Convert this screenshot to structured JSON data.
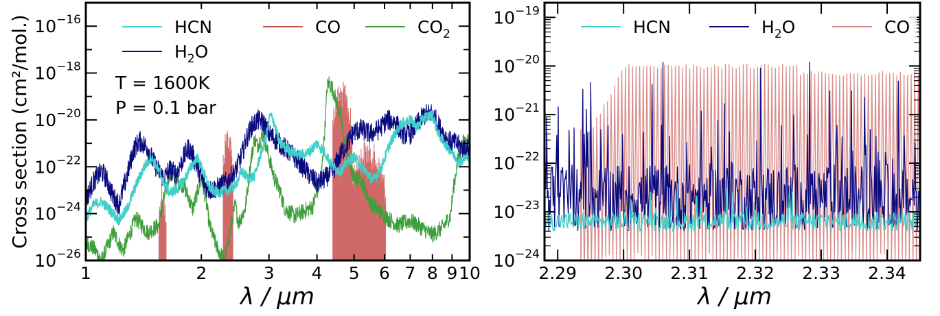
{
  "chart_data": [
    {
      "type": "line",
      "ylabel": "Cross section (cm²/mol.)",
      "xlabel": "λ / μm",
      "xscale": "log",
      "yscale": "log",
      "xlim": [
        1,
        10
      ],
      "ylim": [
        1e-26,
        1e-15
      ],
      "x_ticks": [
        "1",
        "2",
        "3",
        "4",
        "5",
        "6",
        "7",
        "8",
        "9",
        "10"
      ],
      "y_ticks": [
        {
          "base": "10",
          "exp": "−26",
          "value": 1e-26
        },
        {
          "base": "10",
          "exp": "−24",
          "value": 1e-24
        },
        {
          "base": "10",
          "exp": "−22",
          "value": 1e-22
        },
        {
          "base": "10",
          "exp": "−20",
          "value": 1e-20
        },
        {
          "base": "10",
          "exp": "−18",
          "value": 1e-18
        },
        {
          "base": "10",
          "exp": "−16",
          "value": 1e-16
        }
      ],
      "annotations": [
        "T = 1600K",
        "P = 0.1 bar"
      ],
      "legend": {
        "placement": "top",
        "entries": [
          {
            "label": "HCN",
            "sub": "",
            "color": "#40cfc9"
          },
          {
            "label": "CO",
            "sub": "",
            "color": "#c8504e"
          },
          {
            "label": "CO",
            "sub": "2",
            "color": "#3d9e3a"
          },
          {
            "label": "H",
            "sub": "2",
            "suffix": "O",
            "color": "#0a0a80"
          }
        ]
      },
      "series": [
        {
          "name": "CO2",
          "color": "#3d9e3a",
          "points": [
            [
              1.0,
              -25.2
            ],
            [
              1.05,
              -25.5
            ],
            [
              1.1,
              -26
            ],
            [
              1.18,
              -24.8
            ],
            [
              1.25,
              -25.6
            ],
            [
              1.35,
              -24.2
            ],
            [
              1.45,
              -24.8
            ],
            [
              1.55,
              -24.5
            ],
            [
              1.6,
              -23.3
            ],
            [
              1.65,
              -22.3
            ],
            [
              1.72,
              -22.6
            ],
            [
              1.8,
              -22.8
            ],
            [
              1.9,
              -23.8
            ],
            [
              2.0,
              -22.5
            ],
            [
              2.05,
              -23.3
            ],
            [
              2.1,
              -24.5
            ],
            [
              2.2,
              -25.5
            ],
            [
              2.3,
              -26
            ],
            [
              2.4,
              -24.4
            ],
            [
              2.45,
              -23.6
            ],
            [
              2.5,
              -24.4
            ],
            [
              2.6,
              -23.8
            ],
            [
              2.7,
              -21.6
            ],
            [
              2.75,
              -20.8
            ],
            [
              2.8,
              -21.1
            ],
            [
              2.9,
              -20.6
            ],
            [
              3.0,
              -21.6
            ],
            [
              3.1,
              -22.5
            ],
            [
              3.2,
              -23.0
            ],
            [
              3.3,
              -23.8
            ],
            [
              3.5,
              -24.1
            ],
            [
              3.7,
              -23.9
            ],
            [
              3.9,
              -23.7
            ],
            [
              4.1,
              -22.5
            ],
            [
              4.2,
              -20.3
            ],
            [
              4.25,
              -18.6
            ],
            [
              4.3,
              -18.4
            ],
            [
              4.4,
              -18.7
            ],
            [
              4.6,
              -19.8
            ],
            [
              4.8,
              -21.6
            ],
            [
              5.0,
              -22.5
            ],
            [
              5.2,
              -22.5
            ],
            [
              5.5,
              -23.5
            ],
            [
              6.0,
              -24.1
            ],
            [
              6.5,
              -24.5
            ],
            [
              7.0,
              -24.3
            ],
            [
              7.5,
              -24.6
            ],
            [
              8.0,
              -24.9
            ],
            [
              8.5,
              -24.6
            ],
            [
              8.9,
              -24.1
            ],
            [
              9.1,
              -22.8
            ],
            [
              9.3,
              -21.8
            ],
            [
              9.6,
              -21.0
            ],
            [
              10.0,
              -20.8
            ]
          ]
        },
        {
          "name": "CO",
          "color": "#c8504e",
          "bands": [
            {
              "x": [
                1.55,
                1.62
              ],
              "ymax": -22.5
            },
            {
              "x": [
                2.28,
                2.42
              ],
              "ymax": -20.1
            },
            {
              "x": [
                4.4,
                4.95
              ],
              "ymax": -18.3
            },
            {
              "x": [
                4.95,
                6.05
              ],
              "ymax": -20.8
            }
          ]
        },
        {
          "name": "H2O",
          "color": "#0a0a80",
          "points": [
            [
              1.0,
              -23.4
            ],
            [
              1.05,
              -22.6
            ],
            [
              1.1,
              -22.2
            ],
            [
              1.13,
              -22.5
            ],
            [
              1.18,
              -23.3
            ],
            [
              1.22,
              -23.6
            ],
            [
              1.28,
              -22.4
            ],
            [
              1.33,
              -21.3
            ],
            [
              1.38,
              -20.9
            ],
            [
              1.45,
              -21.2
            ],
            [
              1.5,
              -21.8
            ],
            [
              1.55,
              -22.2
            ],
            [
              1.6,
              -22.5
            ],
            [
              1.65,
              -22.1
            ],
            [
              1.72,
              -22.3
            ],
            [
              1.8,
              -21.6
            ],
            [
              1.85,
              -21.2
            ],
            [
              1.9,
              -21.5
            ],
            [
              1.95,
              -22.0
            ],
            [
              2.0,
              -22.5
            ],
            [
              2.05,
              -22.8
            ],
            [
              2.1,
              -23.0
            ],
            [
              2.2,
              -22.9
            ],
            [
              2.35,
              -22.6
            ],
            [
              2.45,
              -22.2
            ],
            [
              2.55,
              -21.5
            ],
            [
              2.62,
              -20.8
            ],
            [
              2.7,
              -20.3
            ],
            [
              2.8,
              -20.0
            ],
            [
              2.9,
              -20.1
            ],
            [
              3.0,
              -20.6
            ],
            [
              3.2,
              -21.0
            ],
            [
              3.4,
              -21.4
            ],
            [
              3.6,
              -21.8
            ],
            [
              3.8,
              -22.3
            ],
            [
              4.0,
              -22.7
            ],
            [
              4.2,
              -22.5
            ],
            [
              4.4,
              -22.2
            ],
            [
              4.6,
              -21.5
            ],
            [
              4.8,
              -21.0
            ],
            [
              5.0,
              -20.5
            ],
            [
              5.2,
              -20.4
            ],
            [
              5.5,
              -20.6
            ],
            [
              5.8,
              -20.4
            ],
            [
              6.1,
              -20.0
            ],
            [
              6.4,
              -20.1
            ],
            [
              6.7,
              -20.6
            ],
            [
              7.0,
              -20.6
            ],
            [
              7.3,
              -20.2
            ],
            [
              7.6,
              -19.8
            ],
            [
              8.0,
              -19.7
            ],
            [
              8.4,
              -20.4
            ],
            [
              8.8,
              -20.9
            ],
            [
              9.2,
              -21.0
            ],
            [
              9.6,
              -21.2
            ],
            [
              10.0,
              -21.3
            ]
          ]
        },
        {
          "name": "HCN",
          "color": "#40cfc9",
          "points": [
            [
              1.0,
              -24.2
            ],
            [
              1.05,
              -23.6
            ],
            [
              1.1,
              -23.5
            ],
            [
              1.15,
              -23.8
            ],
            [
              1.22,
              -24.3
            ],
            [
              1.28,
              -23.8
            ],
            [
              1.35,
              -22.8
            ],
            [
              1.42,
              -22.0
            ],
            [
              1.48,
              -21.6
            ],
            [
              1.52,
              -21.9
            ],
            [
              1.58,
              -22.5
            ],
            [
              1.65,
              -23.1
            ],
            [
              1.72,
              -23.0
            ],
            [
              1.8,
              -22.6
            ],
            [
              1.88,
              -22.0
            ],
            [
              1.95,
              -21.6
            ],
            [
              2.0,
              -22.0
            ],
            [
              2.1,
              -22.9
            ],
            [
              2.2,
              -23.1
            ],
            [
              2.35,
              -23.0
            ],
            [
              2.45,
              -22.8
            ],
            [
              2.55,
              -22.2
            ],
            [
              2.65,
              -22.5
            ],
            [
              2.75,
              -22.4
            ],
            [
              2.85,
              -21.5
            ],
            [
              2.95,
              -20.7
            ],
            [
              3.02,
              -19.8
            ],
            [
              3.08,
              -20.0
            ],
            [
              3.2,
              -21.0
            ],
            [
              3.4,
              -21.3
            ],
            [
              3.6,
              -21.5
            ],
            [
              3.8,
              -21.4
            ],
            [
              4.0,
              -21.0
            ],
            [
              4.2,
              -21.4
            ],
            [
              4.4,
              -22.0
            ],
            [
              4.6,
              -22.2
            ],
            [
              4.8,
              -21.8
            ],
            [
              5.0,
              -21.6
            ],
            [
              5.3,
              -22.1
            ],
            [
              5.6,
              -22.6
            ],
            [
              5.9,
              -22.0
            ],
            [
              6.2,
              -21.0
            ],
            [
              6.6,
              -20.2
            ],
            [
              7.0,
              -20.0
            ],
            [
              7.3,
              -20.3
            ],
            [
              7.6,
              -19.9
            ],
            [
              8.0,
              -19.8
            ],
            [
              8.3,
              -20.6
            ],
            [
              8.7,
              -21.1
            ],
            [
              9.0,
              -21.4
            ],
            [
              9.4,
              -21.8
            ],
            [
              10.0,
              -21.5
            ]
          ]
        }
      ]
    },
    {
      "type": "line",
      "xlabel": "λ / μm",
      "xscale": "linear",
      "yscale": "log",
      "xlim": [
        2.288,
        2.345
      ],
      "ylim": [
        1e-24,
        2e-19
      ],
      "x_ticks": [
        "2.29",
        "2.30",
        "2.31",
        "2.32",
        "2.33",
        "2.34"
      ],
      "y_ticks": [
        {
          "base": "10",
          "exp": "−24",
          "value": 1e-24
        },
        {
          "base": "10",
          "exp": "−23",
          "value": 1e-23
        },
        {
          "base": "10",
          "exp": "−22",
          "value": 1e-22
        },
        {
          "base": "10",
          "exp": "−21",
          "value": 1e-21
        },
        {
          "base": "10",
          "exp": "−20",
          "value": 1e-20
        },
        {
          "base": "10",
          "exp": "−19",
          "value": 1e-19
        }
      ],
      "legend": {
        "placement": "top",
        "entries": [
          {
            "label": "HCN",
            "sub": "",
            "color": "#40cfc9"
          },
          {
            "label": "H",
            "sub": "2",
            "suffix": "O",
            "color": "#0a0a80"
          },
          {
            "label": "CO",
            "sub": "",
            "color": "#d98b89"
          }
        ]
      },
      "series": [
        {
          "name": "CO",
          "color": "#d98b89",
          "band_start": 2.2935,
          "line_count": 95,
          "peak_log": -19.95,
          "floor_log": -23.6
        },
        {
          "name": "H2O",
          "color": "#0a0a80",
          "mean_log": -22.7,
          "amplitude": 1.4
        },
        {
          "name": "HCN",
          "color": "#40cfc9",
          "mean_log": -23.2,
          "amplitude": 0.4
        }
      ]
    }
  ]
}
